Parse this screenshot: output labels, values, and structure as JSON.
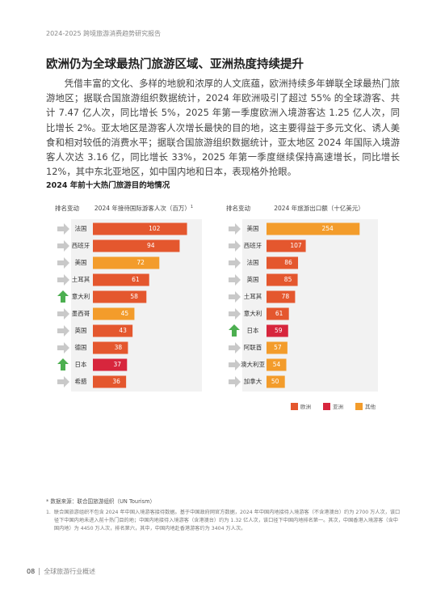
{
  "header": "2024-2025 跨境旅游消费趋势研究报告",
  "title": "欧洲仍为全球最热门旅游区域、亚洲热度持续提升",
  "body": "凭借丰富的文化、多样的地貌和浓厚的人文底蕴，欧洲持续多年蝉联全球最热门旅游地区；据联合国旅游组织数据统计，2024 年欧洲吸引了超过 55% 的全球游客、共计 7.47 亿人次，同比增长 5%，2025 年第一季度欧洲入境游客达 1.25 亿人次，同比增长 2%。亚太地区是游客人次增长最快的目的地，这主要得益于多元文化、诱人美食和相对较低的消费水平；据联合国旅游组织数据统计，亚太地区 2024 年国际入境游客人次达 3.16 亿，同比增长 33%，2025 年第一季度继续保持高速增长，同比增长 12%，其中东北亚地区，如中国内地和日本，表现格外抢眼。",
  "chart_title": "2024 年前十大热门旅游目的地情况",
  "chart_data": [
    {
      "type": "bar",
      "rank_label": "排名变动",
      "title": "2024 年接待国际游客人次（百万）",
      "title_note": "1",
      "categories": [
        "法国",
        "西班牙",
        "美国",
        "土耳其",
        "意大利",
        "墨西哥",
        "英国",
        "德国",
        "日本",
        "希腊"
      ],
      "values": [
        102,
        94,
        72,
        61,
        58,
        45,
        43,
        38,
        37,
        36
      ],
      "colors": [
        "#e4572e",
        "#e4572e",
        "#f39c2b",
        "#e4572e",
        "#e4572e",
        "#f39c2b",
        "#e4572e",
        "#e4572e",
        "#d7263d",
        "#e4572e"
      ],
      "rank_change": [
        "flat",
        "flat",
        "flat",
        "flat",
        "up",
        "flat",
        "flat",
        "flat",
        "up",
        "flat"
      ],
      "xlim": [
        0,
        105
      ]
    },
    {
      "type": "bar",
      "rank_label": "排名变动",
      "title": "2024 年旅游出口额（十亿美元）",
      "categories": [
        "美国",
        "西班牙",
        "法国",
        "英国",
        "土耳其",
        "意大利",
        "日本",
        "阿联酋",
        "澳大利亚",
        "加拿大"
      ],
      "values": [
        254,
        107,
        86,
        85,
        78,
        61,
        59,
        57,
        54,
        50
      ],
      "colors": [
        "#f39c2b",
        "#e4572e",
        "#e4572e",
        "#e4572e",
        "#e4572e",
        "#e4572e",
        "#d7263d",
        "#f39c2b",
        "#f39c2b",
        "#f39c2b"
      ],
      "rank_change": [
        "flat",
        "flat",
        "flat",
        "flat",
        "flat",
        "flat",
        "up",
        "flat",
        "flat",
        "flat"
      ],
      "xlim": [
        0,
        260
      ]
    }
  ],
  "legend": [
    {
      "name": "欧洲",
      "color": "#e4572e"
    },
    {
      "name": "亚洲",
      "color": "#d7263d"
    },
    {
      "name": "其他",
      "color": "#f39c2b"
    }
  ],
  "source": "* 数据来源：联合国旅游组织（UN Tourism）",
  "footnote": {
    "marker": "1.",
    "text": "联合国旅游组织不包含 2024 年中国入境游客接待数据。基于中国政府网官方数据，2024 年中国内地接待入境游客（不含港澳台）约为 2700 万人次，该口径下中国内地未进入前十热门目的地；中国内地接待入境游客（含港澳台）约为 1.32 亿人次，该口径下中国内地排名第一。其次，中国香港入境游客（含中国内地）为 4450 万人次，排名第六，其中，中国内地赴香港游客约为 3404 万人次。"
  },
  "footer": {
    "page": "08",
    "text": "全球旅游行业概述"
  }
}
